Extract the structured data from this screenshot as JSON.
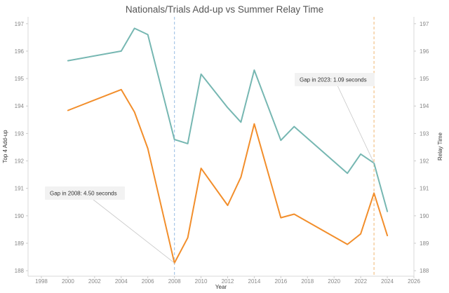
{
  "chart_data": {
    "type": "line",
    "title": "Nationals/Trials Add-up vs Summer Relay Time",
    "xlabel": "Year",
    "ylabel_left": "Top 4 Add-up",
    "ylabel_right": "Relay Time",
    "xlim": [
      1997,
      2026
    ],
    "ylim": [
      187.8,
      197.25
    ],
    "xticks": [
      1998,
      2000,
      2002,
      2004,
      2006,
      2008,
      2010,
      2012,
      2014,
      2016,
      2018,
      2020,
      2022,
      2024,
      2026
    ],
    "yticks": [
      188,
      189,
      190,
      191,
      192,
      193,
      194,
      195,
      196,
      197
    ],
    "grid": false,
    "series": [
      {
        "color": "#76b7b2",
        "x": [
          2000,
          2004,
          2005,
          2006,
          2008,
          2009,
          2010,
          2012,
          2013,
          2014,
          2016,
          2017,
          2021,
          2022,
          2023,
          2024
        ],
        "y": [
          195.65,
          196.0,
          196.83,
          196.6,
          192.78,
          192.63,
          195.16,
          193.94,
          193.41,
          195.31,
          192.75,
          193.25,
          191.55,
          192.25,
          191.92,
          190.16
        ]
      },
      {
        "color": "#f28e2b",
        "x": [
          2000,
          2004,
          2005,
          2006,
          2008,
          2009,
          2010,
          2012,
          2013,
          2014,
          2016,
          2017,
          2021,
          2022,
          2023,
          2024
        ],
        "y": [
          193.84,
          194.6,
          193.78,
          192.45,
          188.28,
          189.2,
          191.73,
          190.38,
          191.41,
          193.35,
          189.93,
          190.06,
          188.96,
          189.34,
          190.83,
          189.28
        ]
      }
    ],
    "reference_lines": [
      {
        "x": 2008,
        "color": "#a8c8e8"
      },
      {
        "x": 2023,
        "color": "#f2c38a"
      }
    ],
    "annotations": [
      {
        "text": "Gap in 2008: 4.50 seconds",
        "target_x": 2008,
        "target_y": 188.28
      },
      {
        "text": "Gap in 2023: 1.09 seconds",
        "target_x": 2023,
        "target_y": 191.92
      }
    ]
  }
}
